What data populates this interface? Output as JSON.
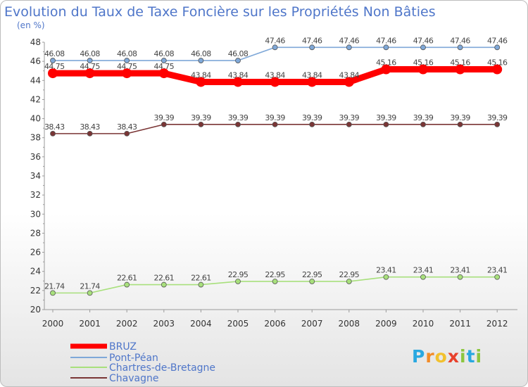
{
  "chart_data": {
    "type": "line",
    "title": "Evolution du Taux de Taxe Foncière sur les Propriétés Non Bâties",
    "subtitle": "(en %)",
    "xlabel": "",
    "ylabel": "",
    "ylim": [
      20,
      48
    ],
    "yticks": [
      20,
      22,
      24,
      26,
      28,
      30,
      32,
      34,
      36,
      38,
      40,
      42,
      44,
      46,
      48
    ],
    "grid": false,
    "legend_position": "bottom-left",
    "categories": [
      "2000",
      "2001",
      "2002",
      "2003",
      "2004",
      "2005",
      "2006",
      "2007",
      "2008",
      "2009",
      "2010",
      "2011",
      "2012"
    ],
    "series": [
      {
        "name": "BRUZ",
        "color": "#ff0000",
        "values": [
          44.75,
          44.75,
          44.75,
          44.75,
          43.84,
          43.84,
          43.84,
          43.84,
          43.84,
          45.16,
          45.16,
          45.16,
          45.16
        ],
        "labels": [
          "44.75",
          "44.75",
          "44.75",
          "44.75",
          "43.84",
          "43.84",
          "43.84",
          "43.84",
          "43.84",
          "45.16",
          "45.16",
          "45.16",
          "45.16"
        ]
      },
      {
        "name": "Pont-Péan",
        "color": "#7fa8d8",
        "values": [
          46.08,
          46.08,
          46.08,
          46.08,
          46.08,
          46.08,
          47.46,
          47.46,
          47.46,
          47.46,
          47.46,
          47.46,
          47.46
        ],
        "labels": [
          "46.08",
          "46.08",
          "46.08",
          "46.08",
          "46.08",
          "46.08",
          "47.46",
          "47.46",
          "47.46",
          "47.46",
          "47.46",
          "47.46",
          "47.46"
        ]
      },
      {
        "name": "Chartres-de-Bretagne",
        "color": "#a8e07c",
        "values": [
          21.74,
          21.74,
          22.61,
          22.61,
          22.61,
          22.95,
          22.95,
          22.95,
          22.95,
          23.41,
          23.41,
          23.41,
          23.41
        ],
        "labels": [
          "21.74",
          "21.74",
          "22.61",
          "22.61",
          "22.61",
          "22.95",
          "22.95",
          "22.95",
          "22.95",
          "23.41",
          "23.41",
          "23.41",
          "23.41"
        ]
      },
      {
        "name": "Chavagne",
        "color": "#7a3535",
        "values": [
          38.43,
          38.43,
          38.43,
          39.39,
          39.39,
          39.39,
          39.39,
          39.39,
          39.39,
          39.39,
          39.39,
          39.39,
          39.39
        ],
        "labels": [
          "38.43",
          "38.43",
          "38.43",
          "39.39",
          "39.39",
          "39.39",
          "39.39",
          "39.39",
          "39.39",
          "39.39",
          "39.39",
          "39.39",
          "39.39"
        ]
      }
    ]
  },
  "logo": {
    "text": "Proxiti",
    "letters": [
      "P",
      "r",
      "o",
      "x",
      "i",
      "t",
      "i"
    ],
    "colors": [
      "#29a8e0",
      "#f28c28",
      "#f2c12e",
      "#e8412c",
      "#8cc63f",
      "#29a8e0",
      "#8cc63f"
    ]
  }
}
